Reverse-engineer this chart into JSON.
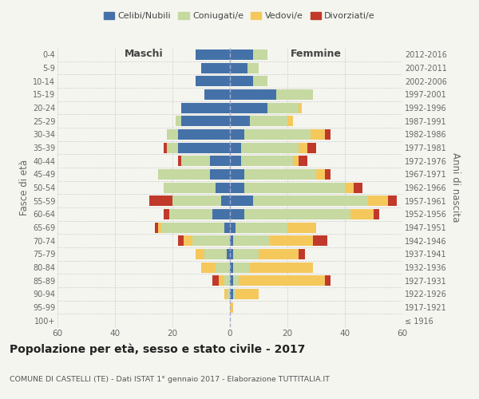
{
  "age_groups": [
    "100+",
    "95-99",
    "90-94",
    "85-89",
    "80-84",
    "75-79",
    "70-74",
    "65-69",
    "60-64",
    "55-59",
    "50-54",
    "45-49",
    "40-44",
    "35-39",
    "30-34",
    "25-29",
    "20-24",
    "15-19",
    "10-14",
    "5-9",
    "0-4"
  ],
  "birth_years": [
    "≤ 1916",
    "1917-1921",
    "1922-1926",
    "1927-1931",
    "1932-1936",
    "1937-1941",
    "1942-1946",
    "1947-1951",
    "1952-1956",
    "1957-1961",
    "1962-1966",
    "1967-1971",
    "1972-1976",
    "1977-1981",
    "1982-1986",
    "1987-1991",
    "1992-1996",
    "1997-2001",
    "2002-2006",
    "2007-2011",
    "2012-2016"
  ],
  "maschi": {
    "celibi": [
      0,
      0,
      0,
      0,
      0,
      1,
      0,
      2,
      6,
      3,
      5,
      7,
      7,
      18,
      18,
      17,
      17,
      9,
      12,
      10,
      12
    ],
    "coniugati": [
      0,
      0,
      1,
      2,
      5,
      8,
      13,
      22,
      15,
      17,
      18,
      18,
      10,
      4,
      4,
      2,
      0,
      0,
      0,
      0,
      0
    ],
    "vedovi": [
      0,
      0,
      1,
      2,
      5,
      3,
      3,
      1,
      0,
      0,
      0,
      0,
      0,
      0,
      0,
      0,
      0,
      0,
      0,
      0,
      0
    ],
    "divorziati": [
      0,
      0,
      0,
      2,
      0,
      0,
      2,
      1,
      2,
      8,
      0,
      0,
      1,
      1,
      0,
      0,
      0,
      0,
      0,
      0,
      0
    ]
  },
  "femmine": {
    "nubili": [
      0,
      0,
      1,
      1,
      1,
      1,
      1,
      2,
      5,
      8,
      5,
      5,
      4,
      4,
      5,
      7,
      13,
      16,
      8,
      6,
      8
    ],
    "coniugate": [
      0,
      0,
      1,
      2,
      6,
      9,
      13,
      18,
      37,
      40,
      35,
      25,
      18,
      20,
      23,
      13,
      11,
      13,
      5,
      4,
      5
    ],
    "vedove": [
      0,
      1,
      8,
      30,
      22,
      14,
      15,
      10,
      8,
      7,
      3,
      3,
      2,
      3,
      5,
      2,
      1,
      0,
      0,
      0,
      0
    ],
    "divorziate": [
      0,
      0,
      0,
      2,
      0,
      2,
      5,
      0,
      2,
      3,
      3,
      2,
      3,
      3,
      2,
      0,
      0,
      0,
      0,
      0,
      0
    ]
  },
  "colors": {
    "celibi_nubili": "#4472a8",
    "coniugati": "#c5d9a0",
    "vedovi": "#f5c85c",
    "divorziati": "#c0392b"
  },
  "xlim": 60,
  "title": "Popolazione per età, sesso e stato civile - 2017",
  "subtitle": "COMUNE DI CASTELLI (TE) - Dati ISTAT 1° gennaio 2017 - Elaborazione TUTTITALIA.IT",
  "ylabel_left": "Fasce di età",
  "ylabel_right": "Anni di nascita",
  "maschi_label": "Maschi",
  "femmine_label": "Femmine",
  "legend_labels": [
    "Celibi/Nubili",
    "Coniugati/e",
    "Vedovi/e",
    "Divorziati/e"
  ],
  "bg_color": "#f5f5f0"
}
